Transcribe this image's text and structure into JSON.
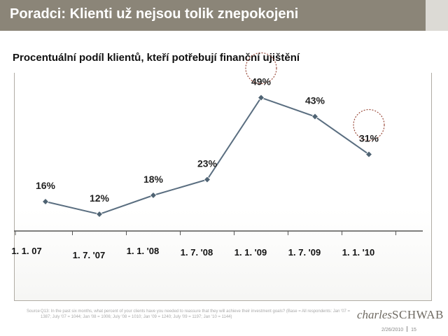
{
  "header": {
    "title": "Poradci: Klienti už nejsou tolik znepokojeni"
  },
  "chart_data": {
    "type": "line",
    "title": "Procentuální podíl klientů, kteří potřebují finanční ujištění",
    "categories": [
      "1. 1. 07",
      "1. 7. '07",
      "1. 1. '08",
      "1. 7. '08",
      "1. 1. '09",
      "1. 7. '09",
      "1. 1. '10"
    ],
    "series": [
      {
        "values": [
          16,
          12,
          18,
          23,
          49,
          43,
          31
        ]
      }
    ],
    "data_labels": [
      "16%",
      "12%",
      "18%",
      "23%",
      "49%",
      "43%",
      "31%"
    ],
    "highlighted": [
      "1. 1. '09",
      "1. 1. '10"
    ],
    "ylim": [
      0,
      60
    ],
    "grid": false,
    "colors": {
      "line": "#5a6e80",
      "marker": "#4f6373",
      "highlight": "#9a4a3a"
    }
  },
  "source": {
    "label": "Source",
    "text": "Q13: In the past six months, what percent of your clients have you needed to reassure that they will achieve their investment goals? (Base = All respondents: Jan '07 = 1387; July '07 = 1044; Jan '08 = 1006; July '08 = 1010; Jan '09 = 1240; July '09 = 1197; Jan '10 = 1144)"
  },
  "logo": {
    "part1": "charles",
    "part2": "SCHWAB"
  },
  "footer": {
    "date": "2/26/2010",
    "page": "15"
  }
}
